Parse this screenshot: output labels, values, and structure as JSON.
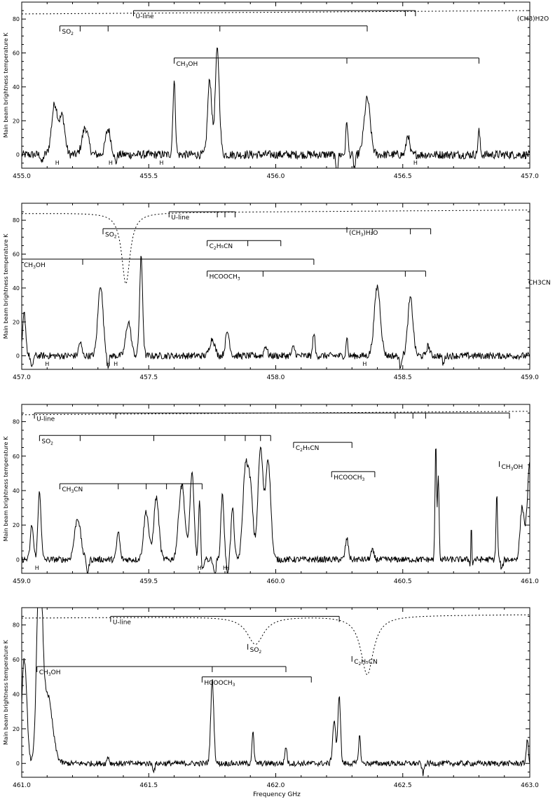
{
  "figure": {
    "ylabel": "Main beam brightness temperature   K",
    "xlabel": "Frequency GHz"
  },
  "colors": {
    "line": "#000000",
    "background": "#ffffff"
  },
  "chart_data": [
    {
      "type": "line",
      "xlim": [
        455.0,
        457.0
      ],
      "ylim": [
        -8,
        90
      ],
      "xticks": [
        "455.0",
        "455.5",
        "456.0",
        "456.5",
        "457.0"
      ],
      "yticks": [
        "0",
        "20",
        "40",
        "60",
        "80"
      ],
      "peaks": [
        {
          "x": 455.13,
          "y": 30,
          "w": 0.012
        },
        {
          "x": 455.16,
          "y": 22,
          "w": 0.01
        },
        {
          "x": 455.25,
          "y": 16,
          "w": 0.012
        },
        {
          "x": 455.34,
          "y": 15,
          "w": 0.01
        },
        {
          "x": 455.6,
          "y": 43,
          "w": 0.005
        },
        {
          "x": 455.74,
          "y": 44,
          "w": 0.008
        },
        {
          "x": 455.77,
          "y": 62,
          "w": 0.008
        },
        {
          "x": 456.28,
          "y": 20,
          "w": 0.004
        },
        {
          "x": 456.36,
          "y": 33,
          "w": 0.012
        },
        {
          "x": 456.52,
          "y": 12,
          "w": 0.006
        },
        {
          "x": 456.8,
          "y": 14,
          "w": 0.004
        }
      ],
      "absorption": [
        {
          "x": 455.08,
          "y": -5
        },
        {
          "x": 455.37,
          "y": -5
        },
        {
          "x": 456.24,
          "y": -12
        },
        {
          "x": 456.31,
          "y": -8
        }
      ],
      "noise": 2.5,
      "dotted_curve": {
        "baseline": 85,
        "dips": []
      },
      "ladders": [
        {
          "label": "U-line",
          "y": 85,
          "x0": 455.44,
          "x1": 456.55,
          "ticks": [
            455.44,
            456.51,
            456.55
          ]
        },
        {
          "label": "SO2",
          "label_sub": "2",
          "label_base": "SO",
          "y": 76,
          "x0": 455.15,
          "x1": 456.36,
          "ticks": [
            455.15,
            455.23,
            455.34,
            455.78,
            456.36
          ]
        },
        {
          "label": "CH3OH",
          "label_base": "CH",
          "label_sub": "3",
          "label_tail": "OH",
          "y": 57,
          "x0": 455.6,
          "x1": 456.8,
          "ticks": [
            455.6,
            456.28,
            456.8
          ]
        }
      ],
      "side_labels": [
        {
          "text": "(CH3)H2O",
          "x": 456.95,
          "y": 79
        }
      ],
      "h_marks": [
        455.14,
        455.35,
        455.55,
        456.55
      ],
      "h_label": "H"
    },
    {
      "type": "line",
      "xlim": [
        457.0,
        459.0
      ],
      "ylim": [
        -8,
        90
      ],
      "xticks": [
        "457.0",
        "457.5",
        "458.0",
        "458.5",
        "459.0"
      ],
      "yticks": [
        "0",
        "20",
        "40",
        "60",
        "80"
      ],
      "peaks": [
        {
          "x": 457.01,
          "y": 25,
          "w": 0.006
        },
        {
          "x": 457.23,
          "y": 8,
          "w": 0.006
        },
        {
          "x": 457.31,
          "y": 42,
          "w": 0.01
        },
        {
          "x": 457.42,
          "y": 20,
          "w": 0.01
        },
        {
          "x": 457.47,
          "y": 58,
          "w": 0.006
        },
        {
          "x": 457.75,
          "y": 10,
          "w": 0.01
        },
        {
          "x": 457.81,
          "y": 14,
          "w": 0.008
        },
        {
          "x": 457.96,
          "y": 6,
          "w": 0.006
        },
        {
          "x": 458.07,
          "y": 5,
          "w": 0.006
        },
        {
          "x": 458.15,
          "y": 14,
          "w": 0.004
        },
        {
          "x": 458.28,
          "y": 12,
          "w": 0.003
        },
        {
          "x": 458.4,
          "y": 41,
          "w": 0.012
        },
        {
          "x": 458.53,
          "y": 34,
          "w": 0.01
        },
        {
          "x": 458.6,
          "y": 6,
          "w": 0.006
        }
      ],
      "absorption": [
        {
          "x": 457.04,
          "y": -8
        },
        {
          "x": 457.34,
          "y": -6
        },
        {
          "x": 458.49,
          "y": -6
        },
        {
          "x": 458.66,
          "y": -5
        }
      ],
      "noise": 2.0,
      "dotted_curve": {
        "baseline": 86,
        "dips": [
          {
            "x": 457.41,
            "depth": 42,
            "width": 0.02
          }
        ]
      },
      "ladders": [
        {
          "label": "U-line",
          "y": 85,
          "x0": 457.58,
          "x1": 457.84,
          "ticks": [
            457.58,
            457.77,
            457.8,
            457.84
          ]
        },
        {
          "label": "(CH3)H2O",
          "label_base": "(CH",
          "label_sub": "3",
          "label_tail": ")H₂O",
          "y": 76,
          "x0": 458.28,
          "x1": 458.28,
          "ticks": [
            458.28
          ]
        },
        {
          "label": "SO2",
          "label_base": "SO",
          "label_sub": "2",
          "y": 75,
          "x0": 457.32,
          "x1": 458.61,
          "ticks": [
            457.32,
            458.38,
            458.53,
            458.61
          ]
        },
        {
          "label": "C2H5CN",
          "label_base": "C",
          "label_sub": "2",
          "label_tail": "H₅CN",
          "y": 68,
          "x0": 457.73,
          "x1": 458.02,
          "ticks": [
            457.73,
            457.89,
            458.02
          ]
        },
        {
          "label": "CH3OH",
          "label_base": "CH",
          "label_sub": "3",
          "label_tail": "OH",
          "y": 57,
          "x0": 457.0,
          "x1": 458.15,
          "ticks": [
            457.0,
            457.24,
            458.15
          ]
        },
        {
          "label": "HCOOCH3",
          "label_base": "HCOOCH",
          "label_sub": "3",
          "y": 50,
          "x0": 457.73,
          "x1": 458.59,
          "ticks": [
            457.73,
            457.95,
            458.51,
            458.59
          ]
        }
      ],
      "side_labels": [
        {
          "text": "CH3CN",
          "x": 459.0,
          "y": 42
        }
      ],
      "h_marks": [
        457.1,
        457.34,
        457.37,
        458.35
      ],
      "h_label": "H"
    },
    {
      "type": "line",
      "xlim": [
        459.0,
        461.0
      ],
      "ylim": [
        -8,
        90
      ],
      "xticks": [
        "459.0",
        "459.5",
        "460.0",
        "460.5",
        "461.0"
      ],
      "yticks": [
        "0",
        "20",
        "40",
        "60",
        "80"
      ],
      "peaks": [
        {
          "x": 459.04,
          "y": 20,
          "w": 0.006
        },
        {
          "x": 459.07,
          "y": 40,
          "w": 0.006
        },
        {
          "x": 459.22,
          "y": 24,
          "w": 0.012
        },
        {
          "x": 459.38,
          "y": 16,
          "w": 0.006
        },
        {
          "x": 459.49,
          "y": 28,
          "w": 0.01
        },
        {
          "x": 459.53,
          "y": 36,
          "w": 0.01
        },
        {
          "x": 459.63,
          "y": 44,
          "w": 0.012
        },
        {
          "x": 459.67,
          "y": 50,
          "w": 0.008
        },
        {
          "x": 459.7,
          "y": 34,
          "w": 0.004
        },
        {
          "x": 459.79,
          "y": 38,
          "w": 0.006
        },
        {
          "x": 459.83,
          "y": 30,
          "w": 0.006
        },
        {
          "x": 459.88,
          "y": 50,
          "w": 0.01
        },
        {
          "x": 459.9,
          "y": 40,
          "w": 0.01
        },
        {
          "x": 459.94,
          "y": 64,
          "w": 0.01
        },
        {
          "x": 459.97,
          "y": 58,
          "w": 0.01
        },
        {
          "x": 460.28,
          "y": 12,
          "w": 0.006
        },
        {
          "x": 460.38,
          "y": 5,
          "w": 0.006
        },
        {
          "x": 460.63,
          "y": 68,
          "w": 0.003
        },
        {
          "x": 460.64,
          "y": 50,
          "w": 0.003
        },
        {
          "x": 460.77,
          "y": 28,
          "w": 0.002
        },
        {
          "x": 460.87,
          "y": 38,
          "w": 0.003
        },
        {
          "x": 460.97,
          "y": 30,
          "w": 0.008
        },
        {
          "x": 461.0,
          "y": 55,
          "w": 0.01
        }
      ],
      "absorption": [
        {
          "x": 459.26,
          "y": -8
        },
        {
          "x": 459.71,
          "y": -8
        },
        {
          "x": 459.76,
          "y": -10
        },
        {
          "x": 459.81,
          "y": -8
        },
        {
          "x": 460.77,
          "y": -8
        },
        {
          "x": 460.89,
          "y": -6
        }
      ],
      "noise": 1.8,
      "dotted_curve": {
        "baseline": 86,
        "dips": []
      },
      "ladders": [
        {
          "label": "U-line",
          "y": 85,
          "x0": 459.05,
          "x1": 460.92,
          "ticks": [
            459.05,
            459.37,
            460.47,
            460.54,
            460.59,
            460.92
          ]
        },
        {
          "label": "SO2",
          "label_base": "SO",
          "label_sub": "2",
          "y": 72,
          "x0": 459.07,
          "x1": 459.98,
          "ticks": [
            459.07,
            459.23,
            459.52,
            459.8,
            459.88,
            459.94,
            459.98
          ]
        },
        {
          "label": "C2H5CN",
          "label_base": "C",
          "label_sub": "2",
          "label_tail": "H₅CN",
          "y": 68,
          "x0": 460.07,
          "x1": 460.3,
          "ticks": [
            460.07,
            460.3
          ]
        },
        {
          "label": "HCOOCH3",
          "label_base": "HCOOCH",
          "label_sub": "3",
          "y": 51,
          "x0": 460.22,
          "x1": 460.39,
          "ticks": [
            460.22,
            460.39
          ]
        },
        {
          "label": "CH3CN",
          "label_base": "CH",
          "label_sub": "3",
          "label_tail": "CN",
          "y": 44,
          "x0": 459.15,
          "x1": 459.71,
          "ticks": [
            459.15,
            459.38,
            459.49,
            459.57,
            459.63,
            459.71
          ]
        },
        {
          "label": "CH3OH",
          "label_base": "CH",
          "label_sub": "3",
          "label_tail": "OH",
          "y": 57,
          "x0": 460.88,
          "x1": 460.88,
          "ticks": [
            460.88
          ]
        }
      ],
      "side_labels": [],
      "h_marks": [
        459.06,
        459.7,
        459.8,
        459.81
      ],
      "h_label": "H"
    },
    {
      "type": "line",
      "xlim": [
        461.0,
        463.0
      ],
      "ylim": [
        -8,
        90
      ],
      "xticks": [
        "461.0",
        "461.5",
        "462.0",
        "462.5",
        "463.0"
      ],
      "yticks": [
        "0",
        "20",
        "40",
        "60",
        "80"
      ],
      "peaks": [
        {
          "x": 461.01,
          "y": 60,
          "w": 0.01
        },
        {
          "x": 461.07,
          "y": 120,
          "w": 0.01
        },
        {
          "x": 461.1,
          "y": 40,
          "w": 0.02
        },
        {
          "x": 461.34,
          "y": 4,
          "w": 0.004
        },
        {
          "x": 461.75,
          "y": 48,
          "w": 0.006
        },
        {
          "x": 461.91,
          "y": 18,
          "w": 0.004
        },
        {
          "x": 462.04,
          "y": 10,
          "w": 0.004
        },
        {
          "x": 462.23,
          "y": 25,
          "w": 0.006
        },
        {
          "x": 462.25,
          "y": 40,
          "w": 0.005
        },
        {
          "x": 462.33,
          "y": 16,
          "w": 0.004
        },
        {
          "x": 462.99,
          "y": 14,
          "w": 0.004
        }
      ],
      "absorption": [
        {
          "x": 461.52,
          "y": -4
        },
        {
          "x": 462.58,
          "y": -6
        }
      ],
      "noise": 1.6,
      "dotted_curve": {
        "baseline": 86,
        "dips": [
          {
            "x": 461.92,
            "depth": 16,
            "width": 0.04
          },
          {
            "x": 462.36,
            "depth": 34,
            "width": 0.03
          }
        ]
      },
      "ladders": [
        {
          "label": "U-line",
          "y": 85,
          "x0": 461.35,
          "x1": 462.25,
          "ticks": [
            461.35,
            462.25
          ]
        },
        {
          "label": "SO2",
          "label_base": "SO",
          "label_sub": "2",
          "y": 69,
          "x0": 461.89,
          "x1": 461.89,
          "ticks": [
            461.89
          ]
        },
        {
          "label": "C2H5CN",
          "label_base": "C",
          "label_sub": "2",
          "label_tail": "H₅CN",
          "y": 62,
          "x0": 462.3,
          "x1": 462.3,
          "ticks": [
            462.3
          ]
        },
        {
          "label": "CH3OH",
          "label_base": "CH",
          "label_sub": "3",
          "label_tail": "OH",
          "y": 56,
          "x0": 461.06,
          "x1": 462.04,
          "ticks": [
            461.06,
            461.75,
            462.04
          ]
        },
        {
          "label": "HCOOCH3",
          "label_base": "HCOOCH",
          "label_sub": "3",
          "y": 50,
          "x0": 461.71,
          "x1": 462.14,
          "ticks": [
            461.71,
            462.14
          ]
        }
      ],
      "side_labels": [],
      "h_marks": [],
      "h_label": "H"
    }
  ]
}
